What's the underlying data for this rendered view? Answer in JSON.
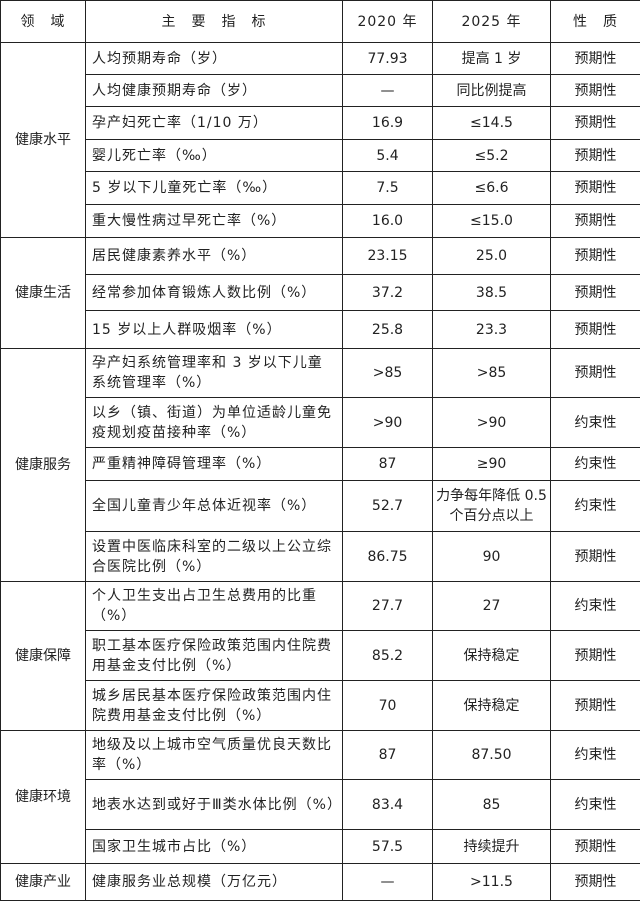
{
  "headers": {
    "domain": "领　域",
    "indicator": "主　要　指　标",
    "y2020": "2020 年",
    "y2025": "2025 年",
    "nature": "性　质"
  },
  "groups": [
    {
      "domain": "健康水平",
      "rows": [
        {
          "indicator": "人均预期寿命（岁）",
          "v2020": "77.93",
          "v2025": "提高 1 岁",
          "nature": "预期性"
        },
        {
          "indicator": "人均健康预期寿命（岁）",
          "v2020": "—",
          "v2025": "同比例提高",
          "nature": "预期性"
        },
        {
          "indicator": "孕产妇死亡率（1/10 万）",
          "v2020": "16.9",
          "v2025": "≤14.5",
          "nature": "预期性"
        },
        {
          "indicator": "婴儿死亡率（‰）",
          "v2020": "5.4",
          "v2025": "≤5.2",
          "nature": "预期性"
        },
        {
          "indicator": "5 岁以下儿童死亡率（‰）",
          "v2020": "7.5",
          "v2025": "≤6.6",
          "nature": "预期性"
        },
        {
          "indicator": "重大慢性病过早死亡率（%）",
          "v2020": "16.0",
          "v2025": "≤15.0",
          "nature": "预期性"
        }
      ]
    },
    {
      "domain": "健康生活",
      "rows": [
        {
          "indicator": "居民健康素养水平（%）",
          "v2020": "23.15",
          "v2025": "25.0",
          "nature": "预期性"
        },
        {
          "indicator": "经常参加体育锻炼人数比例（%）",
          "v2020": "37.2",
          "v2025": "38.5",
          "nature": "预期性"
        },
        {
          "indicator": "15 岁以上人群吸烟率（%）",
          "v2020": "25.8",
          "v2025": "23.3",
          "nature": "预期性"
        }
      ]
    },
    {
      "domain": "健康服务",
      "rows": [
        {
          "indicator": "孕产妇系统管理率和 3 岁以下儿童系统管理率（%）",
          "v2020": ">85",
          "v2025": ">85",
          "nature": "预期性"
        },
        {
          "indicator": "以乡（镇、街道）为单位适龄儿童免疫规划疫苗接种率（%）",
          "v2020": ">90",
          "v2025": ">90",
          "nature": "约束性"
        },
        {
          "indicator": "严重精神障碍管理率（%）",
          "v2020": "87",
          "v2025": "≥90",
          "nature": "约束性"
        },
        {
          "indicator": "全国儿童青少年总体近视率（%）",
          "v2020": "52.7",
          "v2025": "力争每年降低 0.5 个百分点以上",
          "nature": "约束性"
        },
        {
          "indicator": "设置中医临床科室的二级以上公立综合医院比例（%）",
          "v2020": "86.75",
          "v2025": "90",
          "nature": "预期性"
        }
      ]
    },
    {
      "domain": "健康保障",
      "rows": [
        {
          "indicator": "个人卫生支出占卫生总费用的比重（%）",
          "v2020": "27.7",
          "v2025": "27",
          "nature": "约束性"
        },
        {
          "indicator": "职工基本医疗保险政策范围内住院费用基金支付比例（%）",
          "v2020": "85.2",
          "v2025": "保持稳定",
          "nature": "预期性"
        },
        {
          "indicator": "城乡居民基本医疗保险政策范围内住院费用基金支付比例（%）",
          "v2020": "70",
          "v2025": "保持稳定",
          "nature": "预期性"
        }
      ]
    },
    {
      "domain": "健康环境",
      "rows": [
        {
          "indicator": "地级及以上城市空气质量优良天数比率（%）",
          "v2020": "87",
          "v2025": "87.50",
          "nature": "约束性"
        },
        {
          "indicator": "地表水达到或好于Ⅲ类水体比例（%）",
          "v2020": "83.4",
          "v2025": "85",
          "nature": "约束性"
        },
        {
          "indicator": "国家卫生城市占比（%）",
          "v2020": "57.5",
          "v2025": "持续提升",
          "nature": "预期性"
        }
      ]
    },
    {
      "domain": "健康产业",
      "rows": [
        {
          "indicator": "健康服务业总规模（万亿元）",
          "v2020": "—",
          "v2025": ">11.5",
          "nature": "预期性"
        }
      ]
    }
  ]
}
